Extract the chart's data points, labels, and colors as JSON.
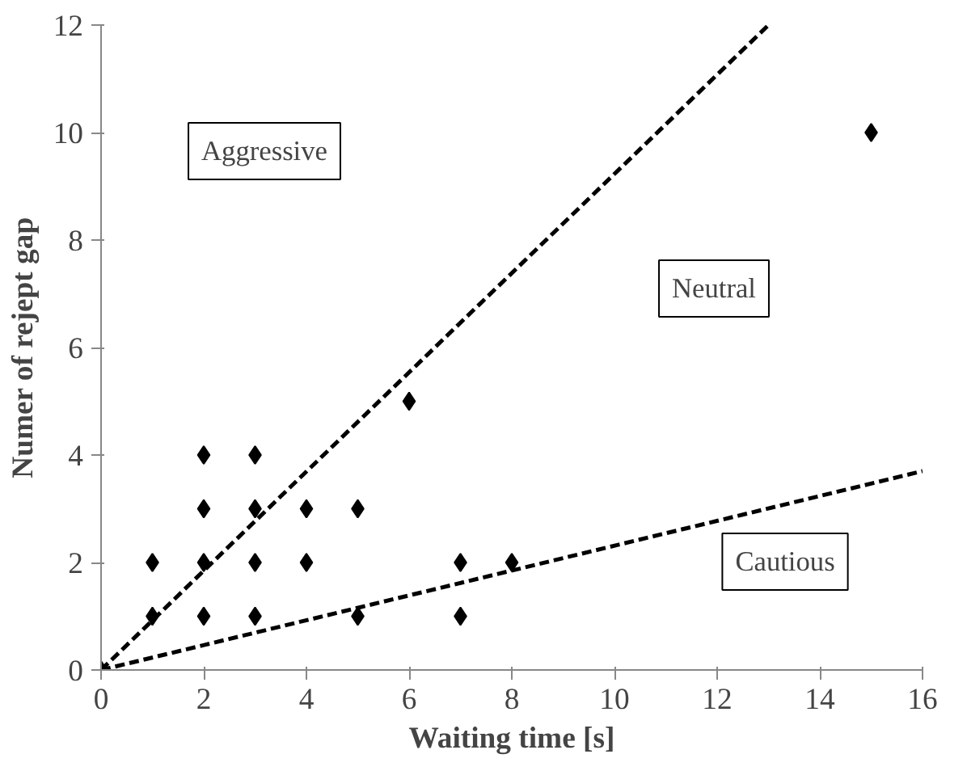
{
  "chart_data": {
    "type": "scatter",
    "xlabel": "Waiting time [s]",
    "ylabel": "Numer of rejept gap",
    "xlim": [
      0,
      16
    ],
    "ylim": [
      0,
      12
    ],
    "xticks": [
      0,
      2,
      4,
      6,
      8,
      10,
      12,
      14,
      16
    ],
    "yticks": [
      0,
      2,
      4,
      6,
      8,
      10,
      12
    ],
    "grid": false,
    "marker": "diamond",
    "series": [
      {
        "color": "#000000",
        "x": [
          0,
          1,
          1,
          2,
          2,
          2,
          2,
          3,
          3,
          3,
          3,
          4,
          4,
          5,
          5,
          6,
          7,
          7,
          8,
          15
        ],
        "values": [
          0,
          1,
          2,
          1,
          2,
          3,
          4,
          1,
          2,
          3,
          4,
          2,
          3,
          1,
          3,
          5,
          1,
          2,
          2,
          10
        ]
      },
      {
        "type": "line",
        "color": "#000000",
        "line_style": "dashed",
        "marker": "none",
        "x": [
          0,
          13
        ],
        "values": [
          0,
          12
        ]
      },
      {
        "type": "line",
        "color": "#000000",
        "line_style": "dashed",
        "marker": "none",
        "x": [
          0,
          16
        ],
        "values": [
          0,
          3.7
        ]
      }
    ],
    "annotations": [
      "Aggressive",
      "Neutral",
      "Cautious"
    ]
  }
}
